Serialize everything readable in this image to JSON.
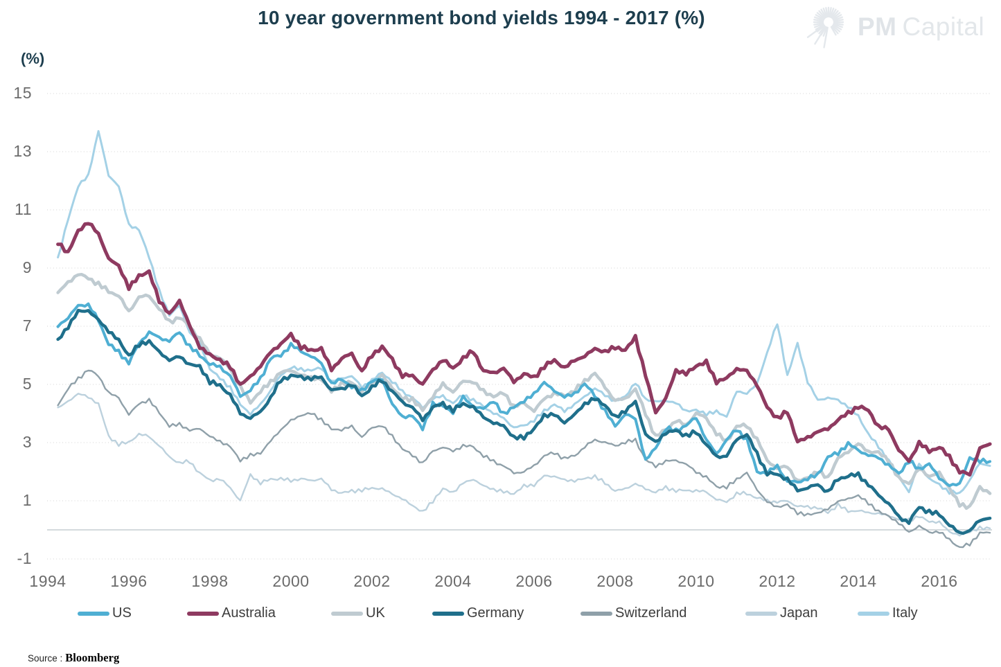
{
  "page": {
    "title": "10 year government bond yields 1994 - 2017 (%)",
    "y_axis_unit_label": "(%)"
  },
  "logo": {
    "icon": "sunburst-icon",
    "brand_primary": "PM",
    "brand_secondary": "Capital"
  },
  "source": {
    "prefix": "Source :",
    "text": "Bloomberg"
  },
  "colors": {
    "title_text": "#1d3e4e",
    "tick_text": "#6b6b6b",
    "legend_text": "#3d3d3d",
    "gridline": "#dbdbdb",
    "zero_line": "#c6cdd2",
    "logo_gray": "#e2e6e9",
    "background": "#ffffff"
  },
  "chart_data": {
    "type": "line",
    "title": "10 year government bond yields 1994 - 2017 (%)",
    "xlabel": "",
    "ylabel": "(%)",
    "ylim": [
      -1,
      15
    ],
    "xlim": [
      1994,
      2017.5
    ],
    "yticks": [
      15,
      13,
      11,
      9,
      7,
      5,
      3,
      1,
      -1
    ],
    "xticks": [
      1994,
      1996,
      1998,
      2000,
      2002,
      2004,
      2006,
      2008,
      2010,
      2012,
      2014,
      2016
    ],
    "grid": "horizontal-dotted",
    "zero_line": true,
    "legend_position": "bottom",
    "x_start": 1994.25,
    "x_step": 0.25,
    "series": [
      {
        "name": "US",
        "color": "#4fafd3",
        "width": 4,
        "values": [
          7.0,
          7.3,
          7.7,
          7.75,
          7.2,
          6.4,
          6.1,
          5.75,
          6.4,
          6.8,
          6.6,
          6.5,
          6.8,
          6.3,
          6.0,
          5.7,
          5.6,
          5.3,
          4.6,
          4.8,
          5.2,
          5.9,
          6.0,
          6.35,
          6.15,
          5.95,
          5.75,
          5.0,
          5.2,
          4.9,
          4.8,
          5.1,
          5.2,
          4.3,
          3.9,
          3.9,
          3.5,
          4.3,
          4.3,
          4.0,
          4.6,
          4.2,
          4.2,
          4.4,
          4.0,
          4.2,
          4.45,
          4.65,
          5.1,
          4.75,
          4.6,
          4.65,
          5.05,
          4.6,
          4.1,
          3.55,
          4.0,
          3.8,
          2.4,
          2.8,
          3.5,
          3.4,
          3.6,
          3.85,
          3.1,
          2.6,
          3.1,
          3.45,
          3.1,
          2.0,
          1.95,
          2.2,
          1.65,
          1.65,
          1.75,
          1.9,
          2.5,
          2.65,
          2.95,
          2.75,
          2.55,
          2.5,
          2.2,
          1.95,
          2.35,
          2.1,
          2.25,
          1.8,
          1.5,
          1.6,
          2.45,
          2.4,
          2.35
        ]
      },
      {
        "name": "Australia",
        "color": "#8e3a60",
        "width": 5,
        "values": [
          9.9,
          9.5,
          10.3,
          10.55,
          10.2,
          9.3,
          9.1,
          8.3,
          8.75,
          8.85,
          7.9,
          7.4,
          7.9,
          7.0,
          6.3,
          6.0,
          5.85,
          5.6,
          5.0,
          5.25,
          5.65,
          6.1,
          6.4,
          6.7,
          6.3,
          6.15,
          6.25,
          5.5,
          5.9,
          6.05,
          5.45,
          6.0,
          6.3,
          5.85,
          5.3,
          5.3,
          5.0,
          5.5,
          5.85,
          5.55,
          5.9,
          6.15,
          5.45,
          5.4,
          5.55,
          5.1,
          5.35,
          5.25,
          5.6,
          5.85,
          5.55,
          5.85,
          5.95,
          6.25,
          6.1,
          6.3,
          6.15,
          6.65,
          5.3,
          4.05,
          4.5,
          5.5,
          5.35,
          5.65,
          5.75,
          5.1,
          5.2,
          5.55,
          5.45,
          5.0,
          4.2,
          3.85,
          4.05,
          3.05,
          3.15,
          3.4,
          3.45,
          3.8,
          4.0,
          4.25,
          4.1,
          3.55,
          3.45,
          2.75,
          2.35,
          3.0,
          2.7,
          2.85,
          2.5,
          2.0,
          1.9,
          2.8,
          2.95
        ]
      },
      {
        "name": "UK",
        "color": "#bfcbd1",
        "width": 4.5,
        "values": [
          8.15,
          8.5,
          8.8,
          8.65,
          8.45,
          8.2,
          8.05,
          7.5,
          8.0,
          8.05,
          7.6,
          7.15,
          7.3,
          7.0,
          6.55,
          6.05,
          5.9,
          5.55,
          4.9,
          4.4,
          4.75,
          5.1,
          5.4,
          5.5,
          5.3,
          5.25,
          5.15,
          4.8,
          5.0,
          5.1,
          4.75,
          5.05,
          5.3,
          4.9,
          4.5,
          4.5,
          4.1,
          4.6,
          5.0,
          4.75,
          5.1,
          5.1,
          4.75,
          4.6,
          4.7,
          4.25,
          4.35,
          4.1,
          4.5,
          4.7,
          4.6,
          4.8,
          5.1,
          5.4,
          4.9,
          4.45,
          4.5,
          4.85,
          4.0,
          3.2,
          3.45,
          3.75,
          3.6,
          4.0,
          3.85,
          3.3,
          3.05,
          3.55,
          3.6,
          3.1,
          2.4,
          2.1,
          2.2,
          1.65,
          1.8,
          2.0,
          1.8,
          2.45,
          2.7,
          2.95,
          2.7,
          2.65,
          2.4,
          1.75,
          1.6,
          2.1,
          1.85,
          1.95,
          1.45,
          0.85,
          0.8,
          1.45,
          1.25
        ]
      },
      {
        "name": "Germany",
        "color": "#1f6f8b",
        "width": 4.5,
        "values": [
          6.5,
          7.0,
          7.5,
          7.55,
          7.2,
          6.85,
          6.5,
          6.0,
          6.35,
          6.5,
          6.1,
          5.85,
          5.95,
          5.7,
          5.6,
          5.1,
          4.95,
          4.65,
          4.0,
          3.85,
          4.05,
          4.55,
          5.15,
          5.3,
          5.25,
          5.2,
          5.25,
          4.8,
          4.85,
          5.0,
          4.6,
          4.9,
          5.15,
          4.75,
          4.4,
          4.2,
          3.8,
          4.2,
          4.35,
          4.1,
          4.35,
          4.2,
          3.9,
          3.65,
          3.6,
          3.15,
          3.2,
          3.45,
          3.95,
          3.95,
          3.7,
          3.95,
          4.35,
          4.5,
          4.3,
          3.85,
          4.1,
          4.4,
          3.3,
          3.0,
          3.35,
          3.4,
          3.25,
          3.35,
          2.95,
          2.5,
          2.55,
          3.1,
          3.3,
          2.6,
          1.95,
          1.9,
          1.75,
          1.35,
          1.45,
          1.55,
          1.3,
          1.75,
          1.85,
          1.9,
          1.55,
          1.2,
          0.9,
          0.45,
          0.25,
          0.8,
          0.6,
          0.55,
          0.15,
          -0.1,
          -0.05,
          0.35,
          0.4
        ]
      },
      {
        "name": "Switzerland",
        "color": "#8fa0a9",
        "width": 2.4,
        "values": [
          4.3,
          4.85,
          5.2,
          5.5,
          5.3,
          4.7,
          4.55,
          3.95,
          4.35,
          4.45,
          4.05,
          3.55,
          3.65,
          3.4,
          3.5,
          3.2,
          3.05,
          2.85,
          2.4,
          2.55,
          2.65,
          3.05,
          3.45,
          3.75,
          3.95,
          4.0,
          3.8,
          3.45,
          3.45,
          3.55,
          3.2,
          3.5,
          3.6,
          3.2,
          2.8,
          2.55,
          2.3,
          2.7,
          2.85,
          2.7,
          2.9,
          2.85,
          2.55,
          2.35,
          2.2,
          1.95,
          2.0,
          2.2,
          2.55,
          2.65,
          2.45,
          2.55,
          2.85,
          3.1,
          3.0,
          2.9,
          3.0,
          3.1,
          2.4,
          2.2,
          2.35,
          2.4,
          2.25,
          2.0,
          1.8,
          1.5,
          1.45,
          1.75,
          1.95,
          1.4,
          0.95,
          0.8,
          0.85,
          0.6,
          0.5,
          0.6,
          0.7,
          1.0,
          1.05,
          1.2,
          0.9,
          0.65,
          0.45,
          0.25,
          -0.1,
          0.15,
          -0.1,
          -0.05,
          -0.35,
          -0.6,
          -0.5,
          -0.1,
          -0.1
        ]
      },
      {
        "name": "Japan",
        "color": "#bcd1dd",
        "width": 2.4,
        "values": [
          4.2,
          4.4,
          4.7,
          4.55,
          4.35,
          3.2,
          2.95,
          3.0,
          3.3,
          3.2,
          2.9,
          2.5,
          2.3,
          2.35,
          1.95,
          1.7,
          1.75,
          1.45,
          1.0,
          1.9,
          1.6,
          1.75,
          1.75,
          1.7,
          1.75,
          1.7,
          1.75,
          1.4,
          1.25,
          1.35,
          1.35,
          1.45,
          1.4,
          1.25,
          1.05,
          0.85,
          0.6,
          1.0,
          1.4,
          1.3,
          1.6,
          1.75,
          1.5,
          1.4,
          1.3,
          1.25,
          1.5,
          1.55,
          1.85,
          1.85,
          1.7,
          1.7,
          1.75,
          1.85,
          1.6,
          1.35,
          1.4,
          1.6,
          1.4,
          1.3,
          1.45,
          1.35,
          1.35,
          1.35,
          1.3,
          1.05,
          0.95,
          1.25,
          1.25,
          1.1,
          1.0,
          0.95,
          1.0,
          0.8,
          0.8,
          0.75,
          0.6,
          0.85,
          0.65,
          0.65,
          0.6,
          0.55,
          0.5,
          0.35,
          0.35,
          0.45,
          0.3,
          0.25,
          -0.05,
          -0.2,
          -0.05,
          0.05,
          0.05
        ]
      },
      {
        "name": "Italy",
        "color": "#a4d1e6",
        "width": 3,
        "values": [
          9.3,
          10.7,
          11.8,
          12.2,
          13.7,
          12.2,
          11.8,
          10.5,
          10.3,
          9.4,
          8.2,
          7.4,
          7.7,
          6.8,
          6.4,
          5.55,
          5.2,
          4.9,
          4.3,
          4.0,
          4.3,
          4.8,
          5.3,
          5.6,
          5.5,
          5.5,
          5.55,
          5.1,
          5.2,
          5.3,
          4.9,
          5.15,
          5.4,
          5.1,
          4.75,
          4.55,
          4.2,
          4.5,
          4.6,
          4.35,
          4.65,
          4.45,
          4.25,
          4.0,
          3.85,
          3.5,
          3.6,
          3.75,
          4.1,
          4.3,
          4.1,
          4.3,
          4.6,
          4.85,
          4.65,
          4.4,
          4.6,
          5.05,
          4.5,
          4.4,
          4.45,
          4.35,
          4.1,
          4.1,
          4.0,
          4.05,
          3.9,
          4.75,
          4.7,
          5.0,
          6.1,
          7.1,
          5.3,
          6.4,
          5.1,
          4.45,
          4.55,
          4.45,
          4.25,
          3.9,
          3.3,
          2.85,
          2.4,
          1.85,
          1.3,
          2.3,
          1.75,
          1.55,
          1.3,
          1.25,
          1.7,
          2.3,
          2.2
        ]
      }
    ]
  }
}
